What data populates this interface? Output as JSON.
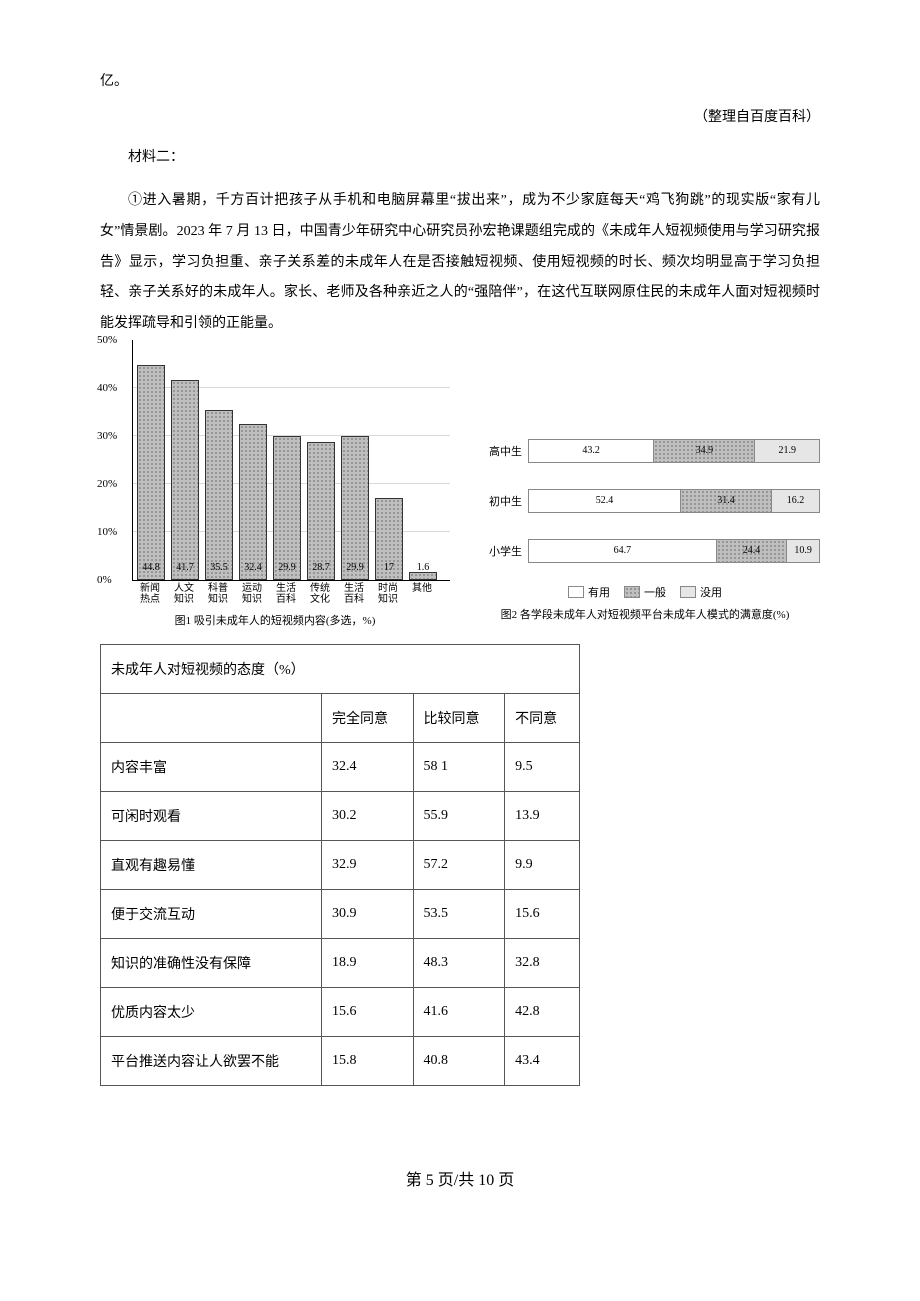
{
  "top_fragment": "亿。",
  "source_line": "（整理自百度百科）",
  "subhead": "材料二：",
  "paragraph": "①进入暑期，千方百计把孩子从手机和电脑屏幕里“拔出来”，成为不少家庭每天“鸡飞狗跳”的现实版“家有儿女”情景剧。2023 年 7 月 13 日，中国青少年研究中心研究员孙宏艳课题组完成的《未成年人短视频使用与学习研究报告》显示，学习负担重、亲子关系差的未成年人在是否接触短视频、使用短视频的时长、频次均明显高于学习负担轻、亲子关系好的未成年人。家长、老师及各种亲近之人的“强陪伴”，在这代互联网原住民的未成年人面对短视频时能发挥疏导和引领的正能量。",
  "chart1": {
    "type": "bar",
    "caption": "图1 吸引未成年人的短视频内容(多选，%)",
    "ymax": 50,
    "ytick_step": 10,
    "ytick_suffix": "%",
    "bar_fill": "#bfbfbf",
    "bar_pattern": "dots",
    "items": [
      {
        "label": "新闻\n热点",
        "value": 44.8
      },
      {
        "label": "人文\n知识",
        "value": 41.7
      },
      {
        "label": "科普\n知识",
        "value": 35.5
      },
      {
        "label": "运动\n知识",
        "value": 32.4
      },
      {
        "label": "生活\n百科",
        "value": 29.9
      },
      {
        "label": "传统\n文化",
        "value": 28.7
      },
      {
        "label": "生活\n百科",
        "value": 29.9
      },
      {
        "label": "时尚\n知识",
        "value": 17
      },
      {
        "label": "其他",
        "value": 1.6
      }
    ]
  },
  "chart2": {
    "type": "stacked_horizontal_bar",
    "caption": "图2 各学段未成年人对短视频平台未成年人模式的满意度(%)",
    "legend": [
      {
        "label": "有用",
        "fill": "#ffffff"
      },
      {
        "label": "一般",
        "fill": "#bfbfbf"
      },
      {
        "label": "没用",
        "fill": "#e6e6e6"
      }
    ],
    "rows": [
      {
        "label": "高中生",
        "segments": [
          43.2,
          34.9,
          21.9
        ]
      },
      {
        "label": "初中生",
        "segments": [
          52.4,
          31.4,
          16.2
        ]
      },
      {
        "label": "小学生",
        "segments": [
          64.7,
          24.4,
          10.9
        ]
      }
    ]
  },
  "attitude_table": {
    "title": "未成年人对短视频的态度（%）",
    "columns": [
      "",
      "完全同意",
      "比较同意",
      "不同意"
    ],
    "rows": [
      [
        "内容丰富",
        "32.4",
        "58 1",
        "9.5"
      ],
      [
        "可闲时观看",
        "30.2",
        "55.9",
        "13.9"
      ],
      [
        "直观有趣易懂",
        "32.9",
        "57.2",
        "9.9"
      ],
      [
        "便于交流互动",
        "30.9",
        "53.5",
        "15.6"
      ],
      [
        "知识的准确性没有保障",
        "18.9",
        "48.3",
        "32.8"
      ],
      [
        "优质内容太少",
        "15.6",
        "41.6",
        "42.8"
      ],
      [
        "平台推送内容让人欲罢不能",
        "15.8",
        "40.8",
        "43.4"
      ]
    ]
  },
  "footer": "第 5 页/共 10 页"
}
